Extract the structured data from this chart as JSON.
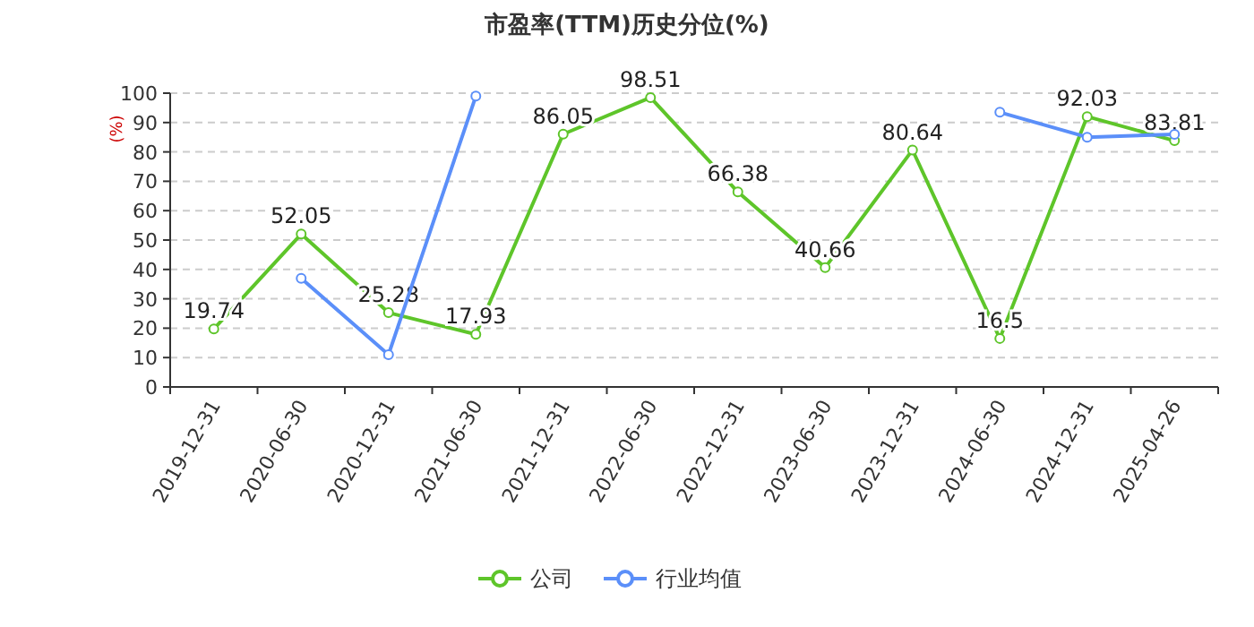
{
  "chart_data": {
    "type": "line",
    "title": "市盈率(TTM)历史分位(%)",
    "ylabel": "(%)",
    "categories": [
      "2019-12-31",
      "2020-06-30",
      "2020-12-31",
      "2021-06-30",
      "2021-12-31",
      "2022-06-30",
      "2022-12-31",
      "2023-06-30",
      "2023-12-31",
      "2024-06-30",
      "2024-12-31",
      "2025-04-26"
    ],
    "series": [
      {
        "name": "公司",
        "color": "#5ec52a",
        "values": [
          19.74,
          52.05,
          25.28,
          17.93,
          86.05,
          98.51,
          66.38,
          40.66,
          80.64,
          16.5,
          92.03,
          83.81
        ],
        "value_labels": [
          "19.74",
          "52.05",
          "25.28",
          "17.93",
          "86.05",
          "98.51",
          "66.38",
          "40.66",
          "80.64",
          "16.5",
          "92.03",
          "83.81"
        ]
      },
      {
        "name": "行业均值",
        "color": "#5b8ff9",
        "values": [
          null,
          37,
          11,
          99,
          null,
          null,
          null,
          null,
          null,
          93.5,
          85,
          86
        ]
      }
    ],
    "ylim": [
      0,
      100
    ],
    "yticks": [
      0,
      10,
      20,
      30,
      40,
      50,
      60,
      70,
      80,
      90,
      100
    ],
    "grid": "y",
    "legend": "bottom",
    "marker": "circle"
  }
}
